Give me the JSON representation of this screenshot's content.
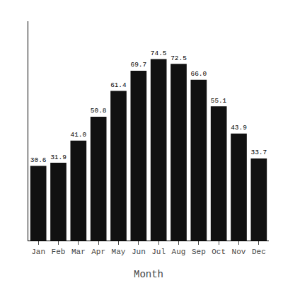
{
  "chart_data": {
    "type": "bar",
    "categories": [
      "Jan",
      "Feb",
      "Mar",
      "Apr",
      "May",
      "Jun",
      "Jul",
      "Aug",
      "Sep",
      "Oct",
      "Nov",
      "Dec"
    ],
    "values": [
      30.6,
      31.9,
      41.0,
      50.8,
      61.4,
      69.7,
      74.5,
      72.5,
      66.0,
      55.1,
      43.9,
      33.7
    ],
    "value_labels": [
      "30.6",
      "31.9",
      "41.0",
      "50.8",
      "61.4",
      "69.7",
      "74.5",
      "72.5",
      "66.0",
      "55.1",
      "43.9",
      "33.7"
    ],
    "color": "#111111",
    "x_label": "Month",
    "ylim": [
      0,
      90
    ],
    "data_labels": true,
    "tick_labels": "x",
    "grid": false
  }
}
